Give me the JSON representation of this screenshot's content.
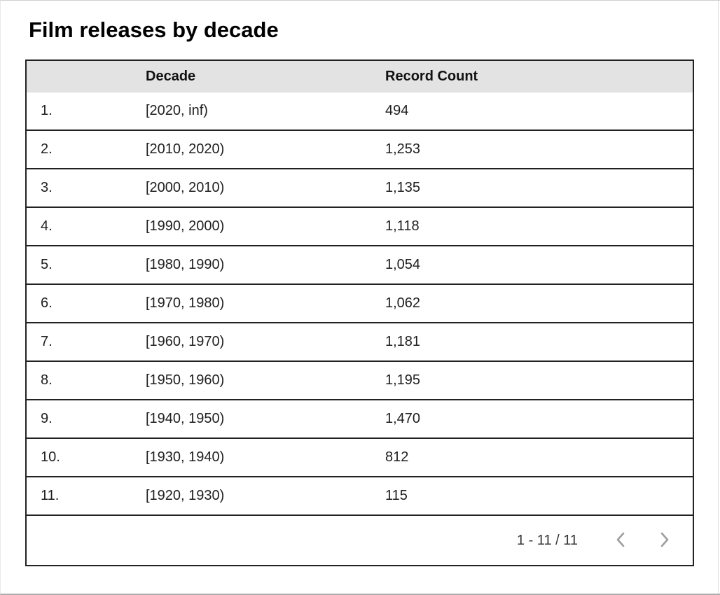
{
  "page": {
    "title": "Film releases by decade"
  },
  "table": {
    "columns": [
      "Decade",
      "Record Count"
    ],
    "rows": [
      {
        "index": "1.",
        "decade": "[2020, inf)",
        "count": "494"
      },
      {
        "index": "2.",
        "decade": "[2010, 2020)",
        "count": "1,253"
      },
      {
        "index": "3.",
        "decade": "[2000, 2010)",
        "count": "1,135"
      },
      {
        "index": "4.",
        "decade": "[1990, 2000)",
        "count": "1,118"
      },
      {
        "index": "5.",
        "decade": "[1980, 1990)",
        "count": "1,054"
      },
      {
        "index": "6.",
        "decade": "[1970, 1980)",
        "count": "1,062"
      },
      {
        "index": "7.",
        "decade": "[1960, 1970)",
        "count": "1,181"
      },
      {
        "index": "8.",
        "decade": "[1950, 1960)",
        "count": "1,195"
      },
      {
        "index": "9.",
        "decade": "[1940, 1950)",
        "count": "1,470"
      },
      {
        "index": "10.",
        "decade": "[1930, 1940)",
        "count": "812"
      },
      {
        "index": "11.",
        "decade": "[1920, 1930)",
        "count": "115"
      }
    ]
  },
  "pagination": {
    "label": "1 - 11 / 11",
    "prev_icon": "chevron-left",
    "next_icon": "chevron-right"
  },
  "colors": {
    "header_bg": "#e3e3e3",
    "table_border": "#222222",
    "text": "#1f1f1f",
    "chevron": "#9e9e9e"
  },
  "chart_data": {
    "type": "table",
    "title": "Film releases by decade",
    "columns": [
      "Decade",
      "Record Count"
    ],
    "categories": [
      "[2020, inf)",
      "[2010, 2020)",
      "[2000, 2010)",
      "[1990, 2000)",
      "[1980, 1990)",
      "[1970, 1980)",
      "[1960, 1970)",
      "[1950, 1960)",
      "[1940, 1950)",
      "[1930, 1940)",
      "[1920, 1930)"
    ],
    "values": [
      494,
      1253,
      1135,
      1118,
      1054,
      1062,
      1181,
      1195,
      1470,
      812,
      115
    ],
    "pagination": "1 - 11 / 11"
  }
}
